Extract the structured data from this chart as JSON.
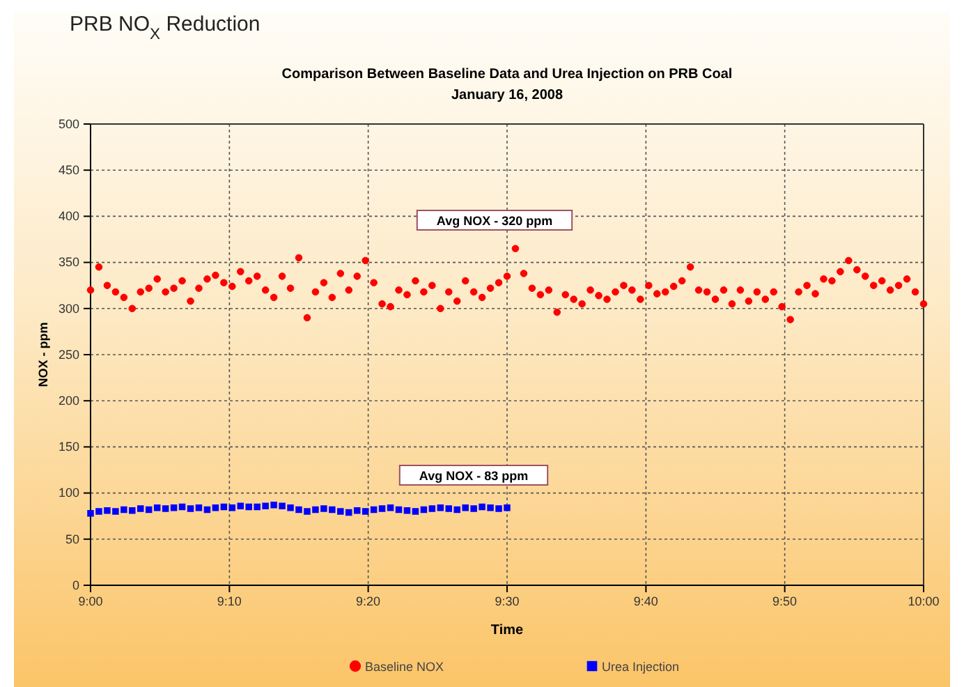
{
  "chart_data": {
    "type": "scatter",
    "title": "PRB NO$_{X}$ Reduction",
    "subtitle": "Comparison Between Baseline Data and Urea Injection on PRB Coal\nJanuary 16, 2008",
    "xlabel": "Time",
    "ylabel": "NOX - ppm",
    "annotations": [
      "Avg NOX - 320 ppm",
      "Avg NOX - 83 ppm"
    ],
    "xlim": [
      9,
      10
    ],
    "xticks": [
      {
        "value": 9,
        "label": "9:00"
      },
      {
        "value": 9.1667,
        "label": "9:10"
      },
      {
        "value": 9.3333,
        "label": "9:20"
      },
      {
        "value": 9.5,
        "label": "9:30"
      },
      {
        "value": 9.6667,
        "label": "9:40"
      },
      {
        "value": 9.8333,
        "label": "9:50"
      },
      {
        "value": 10,
        "label": "10:00"
      }
    ],
    "ylim": [
      0,
      500
    ],
    "yticks": [
      0,
      50,
      100,
      150,
      200,
      250,
      300,
      350,
      400,
      450,
      500
    ],
    "grid": true,
    "legend": "bottom",
    "series": [
      {
        "name": "Baseline NOX",
        "color": "#ff0000",
        "marker": "circle",
        "x": [
          9,
          9.01,
          9.02,
          9.03,
          9.04,
          9.05,
          9.06,
          9.07,
          9.08,
          9.09,
          9.1,
          9.11,
          9.12,
          9.13,
          9.14,
          9.15,
          9.16,
          9.17,
          9.18,
          9.19,
          9.2,
          9.21,
          9.22,
          9.23,
          9.24,
          9.25,
          9.26,
          9.27,
          9.28,
          9.29,
          9.3,
          9.31,
          9.32,
          9.33,
          9.34,
          9.35,
          9.36,
          9.37,
          9.38,
          9.39,
          9.4,
          9.41,
          9.42,
          9.43,
          9.44,
          9.45,
          9.46,
          9.47,
          9.48,
          9.49,
          9.5,
          9.51,
          9.52,
          9.53,
          9.54,
          9.55,
          9.56,
          9.57,
          9.58,
          9.59,
          9.6,
          9.61,
          9.62,
          9.63,
          9.64,
          9.65,
          9.66,
          9.67,
          9.68,
          9.69,
          9.7,
          9.71,
          9.72,
          9.73,
          9.74,
          9.75,
          9.76,
          9.77,
          9.78,
          9.79,
          9.8,
          9.81,
          9.82,
          9.83,
          9.84,
          9.85,
          9.86,
          9.87,
          9.88,
          9.89,
          9.9,
          9.91,
          9.92,
          9.93,
          9.94,
          9.95,
          9.96,
          9.97,
          9.98,
          9.99,
          10
        ],
        "values": [
          320,
          345,
          325,
          318,
          312,
          300,
          318,
          322,
          332,
          318,
          322,
          330,
          308,
          322,
          332,
          336,
          328,
          324,
          340,
          330,
          335,
          320,
          312,
          335,
          322,
          355,
          290,
          318,
          328,
          312,
          338,
          320,
          335,
          352,
          328,
          305,
          302,
          320,
          315,
          330,
          318,
          325,
          300,
          318,
          308,
          330,
          318,
          312,
          322,
          328,
          335,
          365,
          338,
          322,
          315,
          320,
          296,
          315,
          310,
          305,
          320,
          314,
          310,
          318,
          325,
          320,
          310,
          325,
          316,
          318,
          324,
          330,
          345,
          320,
          318,
          310,
          320,
          305,
          320,
          308,
          318,
          310,
          318,
          302,
          288,
          318,
          325,
          316,
          332,
          330,
          340,
          352,
          342,
          335,
          325,
          330,
          320,
          325,
          332,
          318,
          305
        ]
      },
      {
        "name": "Urea Injection",
        "color": "#0000ff",
        "marker": "square",
        "x": [
          9,
          9.01,
          9.02,
          9.03,
          9.04,
          9.05,
          9.06,
          9.07,
          9.08,
          9.09,
          9.1,
          9.11,
          9.12,
          9.13,
          9.14,
          9.15,
          9.16,
          9.17,
          9.18,
          9.19,
          9.2,
          9.21,
          9.22,
          9.23,
          9.24,
          9.25,
          9.26,
          9.27,
          9.28,
          9.29,
          9.3,
          9.31,
          9.32,
          9.33,
          9.34,
          9.35,
          9.36,
          9.37,
          9.38,
          9.39,
          9.4,
          9.41,
          9.42,
          9.43,
          9.44,
          9.45,
          9.46,
          9.47,
          9.48,
          9.49,
          9.5
        ],
        "values": [
          78,
          80,
          81,
          80,
          82,
          81,
          83,
          82,
          84,
          83,
          84,
          85,
          83,
          84,
          82,
          84,
          85,
          84,
          86,
          85,
          85,
          86,
          87,
          86,
          84,
          82,
          80,
          82,
          83,
          82,
          80,
          79,
          81,
          80,
          82,
          83,
          84,
          82,
          81,
          80,
          82,
          83,
          84,
          83,
          82,
          84,
          83,
          85,
          84,
          83,
          84
        ]
      }
    ]
  }
}
